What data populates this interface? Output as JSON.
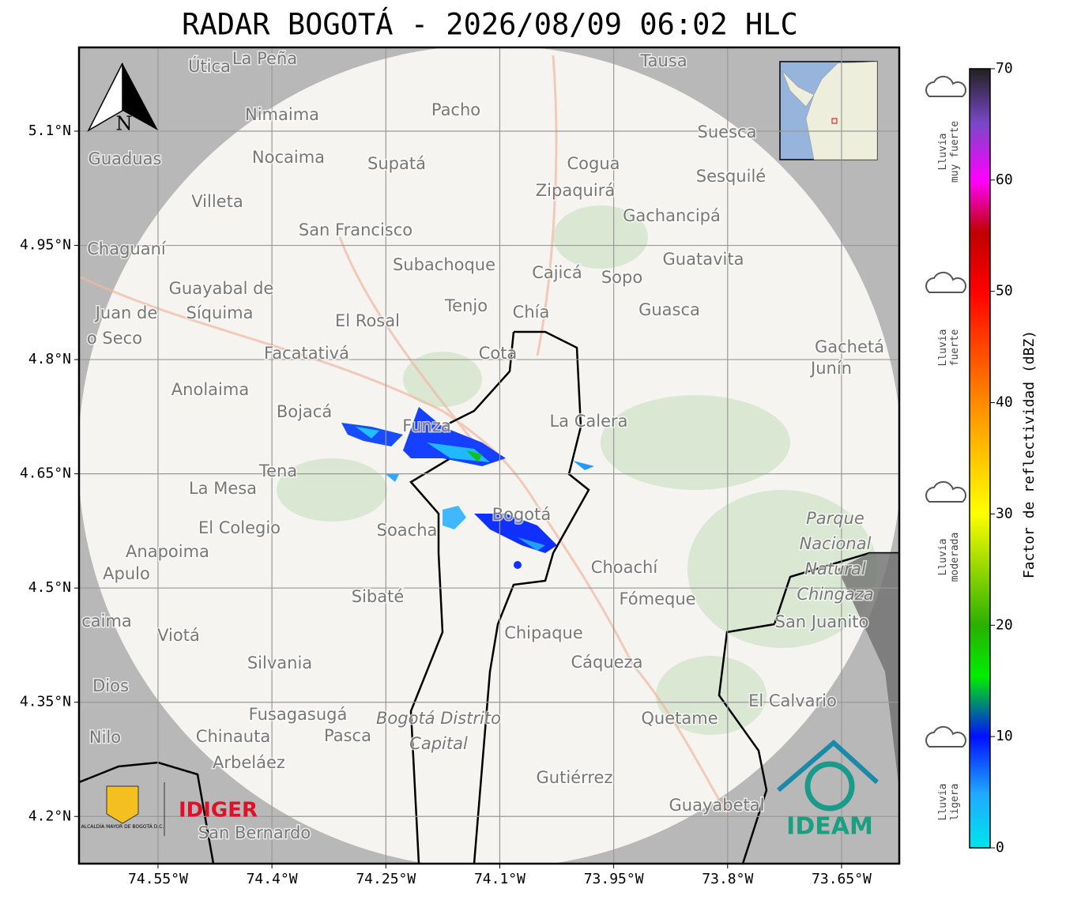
{
  "title": "RADAR BOGOTÁ - 2026/08/09 06:02 HLC",
  "map": {
    "xlim": [
      -74.654,
      -73.574
    ],
    "ylim": [
      4.138,
      5.21
    ],
    "xticks": [
      {
        "value": -74.55,
        "label": "74.55°W"
      },
      {
        "value": -74.4,
        "label": "74.4°W"
      },
      {
        "value": -74.25,
        "label": "74.25°W"
      },
      {
        "value": -74.1,
        "label": "74.1°W"
      },
      {
        "value": -73.95,
        "label": "73.95°W"
      },
      {
        "value": -73.8,
        "label": "73.8°W"
      },
      {
        "value": -73.65,
        "label": "73.65°W"
      }
    ],
    "yticks": [
      {
        "value": 5.1,
        "label": "5.1°N"
      },
      {
        "value": 4.95,
        "label": "4.95°N"
      },
      {
        "value": 4.8,
        "label": "4.8°N"
      },
      {
        "value": 4.65,
        "label": "4.65°N"
      },
      {
        "value": 4.5,
        "label": "4.5°N"
      },
      {
        "value": 4.35,
        "label": "4.35°N"
      },
      {
        "value": 4.2,
        "label": "4.2°N"
      }
    ],
    "north": "N",
    "places": [
      "Útica",
      "La Peña",
      "Tausa",
      "Pacho",
      "Nimaima",
      "Guaduas",
      "Nocaima",
      "Supatá",
      "Cogua",
      "Suesca",
      "Zipaquirá",
      "Sesquilé",
      "Villeta",
      "Gachancipá",
      "San Francisco",
      "Chaguaní",
      "Guatavita",
      "Subachoque",
      "Cajicá",
      "Sopo",
      "Guayabal de",
      "Síquima",
      "Tenjo",
      "Chía",
      "Guasca",
      "Juan de",
      "o Seco",
      "El Rosal",
      "Facatativá",
      "Cota",
      "Gachetá",
      "Junín",
      "Anolaima",
      "Bojacá",
      "Funza",
      "La Calera",
      "Tena",
      "La Mesa",
      "Bogotá",
      "El Colegio",
      "Soacha",
      "Parque",
      "Nacional",
      "Natural",
      "Chingaza",
      "Anapoima",
      "Apulo",
      "Choachí",
      "Sibaté",
      "Fómeque",
      "caima",
      "San Juanito",
      "Viotá",
      "Chipaque",
      "Silvania",
      "Cáqueza",
      "Dios",
      "El Calvario",
      "Fusagasugá",
      "Quetame",
      "Bogotá Distrito",
      "Capital",
      "Nilo",
      "Chinauta",
      "Pasca",
      "Arbeláez",
      "Gutiérrez",
      "Guayabetal",
      "San Bernardo"
    ],
    "logos": {
      "alcaldia": "ALCALDÍA MAYOR DE BOGOTÁ D.C.",
      "idiger": "IDIGER",
      "ideam": "IDEAM"
    }
  },
  "colorbar": {
    "label": "Factor de reflectividad (dBZ)",
    "lim": [
      0,
      70
    ],
    "ticks": [
      0,
      10,
      20,
      30,
      40,
      50,
      60,
      70
    ],
    "categories": [
      [
        "Lluvia",
        "muy fuerte"
      ],
      [
        "Lluvia",
        "fuerte"
      ],
      [
        "Lluvia",
        "moderada"
      ],
      [
        "Lluvia",
        "ligera"
      ]
    ]
  }
}
